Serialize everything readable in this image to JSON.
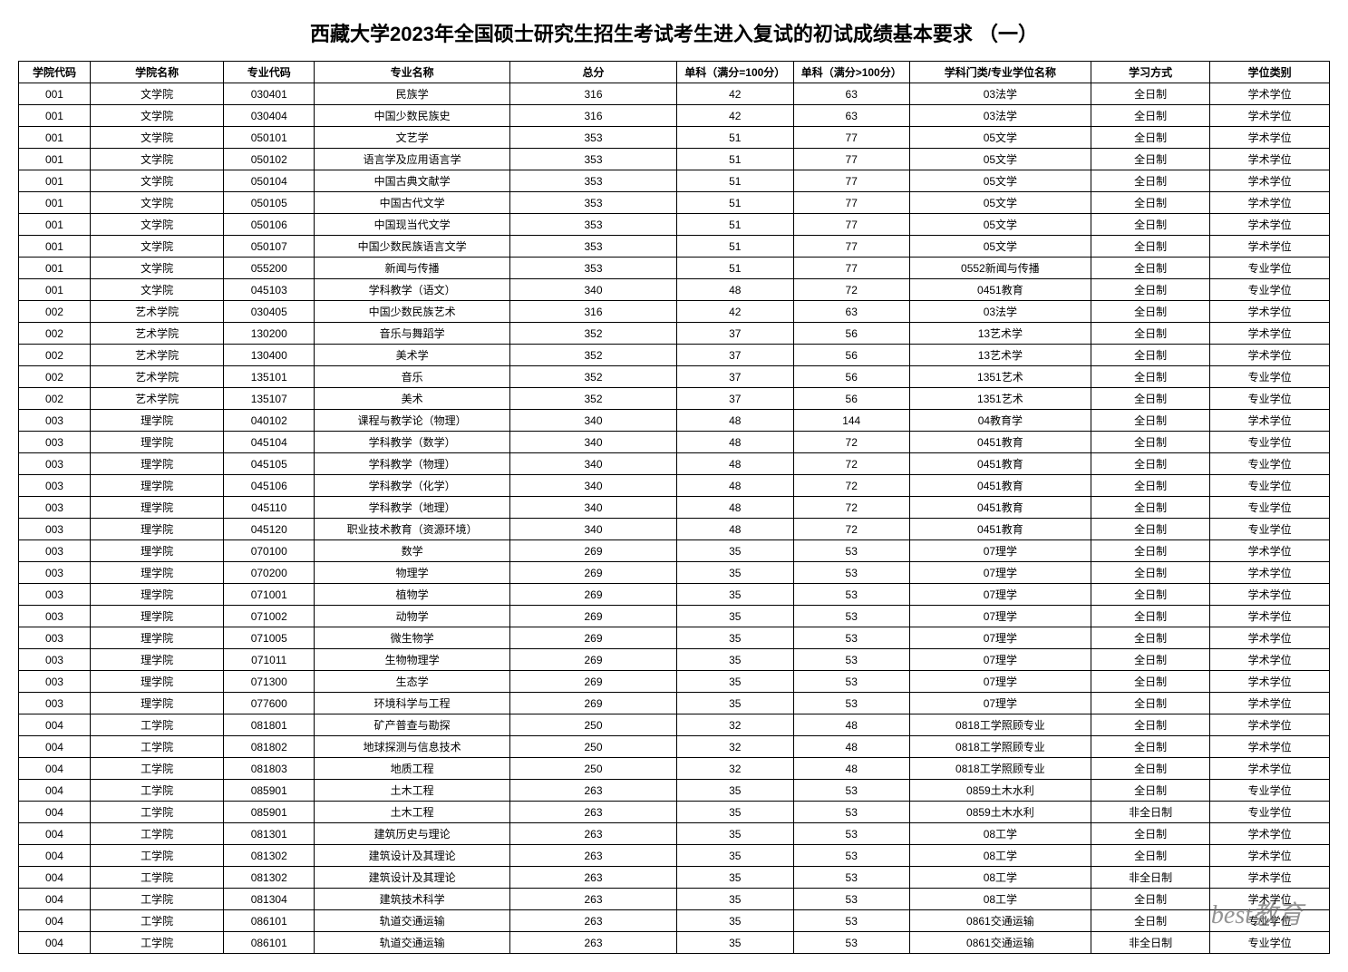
{
  "title": "西藏大学2023年全国硕士研究生招生考试考生进入复试的初试成绩基本要求 （一）",
  "watermark": "best教育",
  "columns": {
    "col1": "学院代码",
    "col2": "学院名称",
    "col3": "专业代码",
    "col4": "专业名称",
    "col5": "总分",
    "col6": "单科（满分=100分）",
    "col7": "单科（满分>100分）",
    "col8": "学科门类/专业学位名称",
    "col9": "学习方式",
    "col10": "学位类别"
  },
  "rows": [
    {
      "c1": "001",
      "c2": "文学院",
      "c3": "030401",
      "c4": "民族学",
      "c5": "316",
      "c6": "42",
      "c7": "63",
      "c8": "03法学",
      "c9": "全日制",
      "c10": "学术学位"
    },
    {
      "c1": "001",
      "c2": "文学院",
      "c3": "030404",
      "c4": "中国少数民族史",
      "c5": "316",
      "c6": "42",
      "c7": "63",
      "c8": "03法学",
      "c9": "全日制",
      "c10": "学术学位"
    },
    {
      "c1": "001",
      "c2": "文学院",
      "c3": "050101",
      "c4": "文艺学",
      "c5": "353",
      "c6": "51",
      "c7": "77",
      "c8": "05文学",
      "c9": "全日制",
      "c10": "学术学位"
    },
    {
      "c1": "001",
      "c2": "文学院",
      "c3": "050102",
      "c4": "语言学及应用语言学",
      "c5": "353",
      "c6": "51",
      "c7": "77",
      "c8": "05文学",
      "c9": "全日制",
      "c10": "学术学位"
    },
    {
      "c1": "001",
      "c2": "文学院",
      "c3": "050104",
      "c4": "中国古典文献学",
      "c5": "353",
      "c6": "51",
      "c7": "77",
      "c8": "05文学",
      "c9": "全日制",
      "c10": "学术学位"
    },
    {
      "c1": "001",
      "c2": "文学院",
      "c3": "050105",
      "c4": "中国古代文学",
      "c5": "353",
      "c6": "51",
      "c7": "77",
      "c8": "05文学",
      "c9": "全日制",
      "c10": "学术学位"
    },
    {
      "c1": "001",
      "c2": "文学院",
      "c3": "050106",
      "c4": "中国现当代文学",
      "c5": "353",
      "c6": "51",
      "c7": "77",
      "c8": "05文学",
      "c9": "全日制",
      "c10": "学术学位"
    },
    {
      "c1": "001",
      "c2": "文学院",
      "c3": "050107",
      "c4": "中国少数民族语言文学",
      "c5": "353",
      "c6": "51",
      "c7": "77",
      "c8": "05文学",
      "c9": "全日制",
      "c10": "学术学位"
    },
    {
      "c1": "001",
      "c2": "文学院",
      "c3": "055200",
      "c4": "新闻与传播",
      "c5": "353",
      "c6": "51",
      "c7": "77",
      "c8": "0552新闻与传播",
      "c9": "全日制",
      "c10": "专业学位"
    },
    {
      "c1": "001",
      "c2": "文学院",
      "c3": "045103",
      "c4": "学科教学（语文）",
      "c5": "340",
      "c6": "48",
      "c7": "72",
      "c8": "0451教育",
      "c9": "全日制",
      "c10": "专业学位"
    },
    {
      "c1": "002",
      "c2": "艺术学院",
      "c3": "030405",
      "c4": "中国少数民族艺术",
      "c5": "316",
      "c6": "42",
      "c7": "63",
      "c8": "03法学",
      "c9": "全日制",
      "c10": "学术学位"
    },
    {
      "c1": "002",
      "c2": "艺术学院",
      "c3": "130200",
      "c4": "音乐与舞蹈学",
      "c5": "352",
      "c6": "37",
      "c7": "56",
      "c8": "13艺术学",
      "c9": "全日制",
      "c10": "学术学位"
    },
    {
      "c1": "002",
      "c2": "艺术学院",
      "c3": "130400",
      "c4": "美术学",
      "c5": "352",
      "c6": "37",
      "c7": "56",
      "c8": "13艺术学",
      "c9": "全日制",
      "c10": "学术学位"
    },
    {
      "c1": "002",
      "c2": "艺术学院",
      "c3": "135101",
      "c4": "音乐",
      "c5": "352",
      "c6": "37",
      "c7": "56",
      "c8": "1351艺术",
      "c9": "全日制",
      "c10": "专业学位"
    },
    {
      "c1": "002",
      "c2": "艺术学院",
      "c3": "135107",
      "c4": "美术",
      "c5": "352",
      "c6": "37",
      "c7": "56",
      "c8": "1351艺术",
      "c9": "全日制",
      "c10": "专业学位"
    },
    {
      "c1": "003",
      "c2": "理学院",
      "c3": "040102",
      "c4": "课程与教学论（物理）",
      "c5": "340",
      "c6": "48",
      "c7": "144",
      "c8": "04教育学",
      "c9": "全日制",
      "c10": "学术学位"
    },
    {
      "c1": "003",
      "c2": "理学院",
      "c3": "045104",
      "c4": "学科教学（数学）",
      "c5": "340",
      "c6": "48",
      "c7": "72",
      "c8": "0451教育",
      "c9": "全日制",
      "c10": "专业学位"
    },
    {
      "c1": "003",
      "c2": "理学院",
      "c3": "045105",
      "c4": "学科教学（物理）",
      "c5": "340",
      "c6": "48",
      "c7": "72",
      "c8": "0451教育",
      "c9": "全日制",
      "c10": "专业学位"
    },
    {
      "c1": "003",
      "c2": "理学院",
      "c3": "045106",
      "c4": "学科教学（化学）",
      "c5": "340",
      "c6": "48",
      "c7": "72",
      "c8": "0451教育",
      "c9": "全日制",
      "c10": "专业学位"
    },
    {
      "c1": "003",
      "c2": "理学院",
      "c3": "045110",
      "c4": "学科教学（地理）",
      "c5": "340",
      "c6": "48",
      "c7": "72",
      "c8": "0451教育",
      "c9": "全日制",
      "c10": "专业学位"
    },
    {
      "c1": "003",
      "c2": "理学院",
      "c3": "045120",
      "c4": "职业技术教育（资源环境）",
      "c5": "340",
      "c6": "48",
      "c7": "72",
      "c8": "0451教育",
      "c9": "全日制",
      "c10": "专业学位"
    },
    {
      "c1": "003",
      "c2": "理学院",
      "c3": "070100",
      "c4": "数学",
      "c5": "269",
      "c6": "35",
      "c7": "53",
      "c8": "07理学",
      "c9": "全日制",
      "c10": "学术学位"
    },
    {
      "c1": "003",
      "c2": "理学院",
      "c3": "070200",
      "c4": "物理学",
      "c5": "269",
      "c6": "35",
      "c7": "53",
      "c8": "07理学",
      "c9": "全日制",
      "c10": "学术学位"
    },
    {
      "c1": "003",
      "c2": "理学院",
      "c3": "071001",
      "c4": "植物学",
      "c5": "269",
      "c6": "35",
      "c7": "53",
      "c8": "07理学",
      "c9": "全日制",
      "c10": "学术学位"
    },
    {
      "c1": "003",
      "c2": "理学院",
      "c3": "071002",
      "c4": "动物学",
      "c5": "269",
      "c6": "35",
      "c7": "53",
      "c8": "07理学",
      "c9": "全日制",
      "c10": "学术学位"
    },
    {
      "c1": "003",
      "c2": "理学院",
      "c3": "071005",
      "c4": "微生物学",
      "c5": "269",
      "c6": "35",
      "c7": "53",
      "c8": "07理学",
      "c9": "全日制",
      "c10": "学术学位"
    },
    {
      "c1": "003",
      "c2": "理学院",
      "c3": "071011",
      "c4": "生物物理学",
      "c5": "269",
      "c6": "35",
      "c7": "53",
      "c8": "07理学",
      "c9": "全日制",
      "c10": "学术学位"
    },
    {
      "c1": "003",
      "c2": "理学院",
      "c3": "071300",
      "c4": "生态学",
      "c5": "269",
      "c6": "35",
      "c7": "53",
      "c8": "07理学",
      "c9": "全日制",
      "c10": "学术学位"
    },
    {
      "c1": "003",
      "c2": "理学院",
      "c3": "077600",
      "c4": "环境科学与工程",
      "c5": "269",
      "c6": "35",
      "c7": "53",
      "c8": "07理学",
      "c9": "全日制",
      "c10": "学术学位"
    },
    {
      "c1": "004",
      "c2": "工学院",
      "c3": "081801",
      "c4": "矿产普查与勘探",
      "c5": "250",
      "c6": "32",
      "c7": "48",
      "c8": "0818工学照顾专业",
      "c9": "全日制",
      "c10": "学术学位"
    },
    {
      "c1": "004",
      "c2": "工学院",
      "c3": "081802",
      "c4": "地球探测与信息技术",
      "c5": "250",
      "c6": "32",
      "c7": "48",
      "c8": "0818工学照顾专业",
      "c9": "全日制",
      "c10": "学术学位"
    },
    {
      "c1": "004",
      "c2": "工学院",
      "c3": "081803",
      "c4": "地质工程",
      "c5": "250",
      "c6": "32",
      "c7": "48",
      "c8": "0818工学照顾专业",
      "c9": "全日制",
      "c10": "学术学位"
    },
    {
      "c1": "004",
      "c2": "工学院",
      "c3": "085901",
      "c4": "土木工程",
      "c5": "263",
      "c6": "35",
      "c7": "53",
      "c8": "0859土木水利",
      "c9": "全日制",
      "c10": "专业学位"
    },
    {
      "c1": "004",
      "c2": "工学院",
      "c3": "085901",
      "c4": "土木工程",
      "c5": "263",
      "c6": "35",
      "c7": "53",
      "c8": "0859土木水利",
      "c9": "非全日制",
      "c10": "专业学位"
    },
    {
      "c1": "004",
      "c2": "工学院",
      "c3": "081301",
      "c4": "建筑历史与理论",
      "c5": "263",
      "c6": "35",
      "c7": "53",
      "c8": "08工学",
      "c9": "全日制",
      "c10": "学术学位"
    },
    {
      "c1": "004",
      "c2": "工学院",
      "c3": "081302",
      "c4": "建筑设计及其理论",
      "c5": "263",
      "c6": "35",
      "c7": "53",
      "c8": "08工学",
      "c9": "全日制",
      "c10": "学术学位"
    },
    {
      "c1": "004",
      "c2": "工学院",
      "c3": "081302",
      "c4": "建筑设计及其理论",
      "c5": "263",
      "c6": "35",
      "c7": "53",
      "c8": "08工学",
      "c9": "非全日制",
      "c10": "学术学位"
    },
    {
      "c1": "004",
      "c2": "工学院",
      "c3": "081304",
      "c4": "建筑技术科学",
      "c5": "263",
      "c6": "35",
      "c7": "53",
      "c8": "08工学",
      "c9": "全日制",
      "c10": "学术学位"
    },
    {
      "c1": "004",
      "c2": "工学院",
      "c3": "086101",
      "c4": "轨道交通运输",
      "c5": "263",
      "c6": "35",
      "c7": "53",
      "c8": "0861交通运输",
      "c9": "全日制",
      "c10": "专业学位"
    },
    {
      "c1": "004",
      "c2": "工学院",
      "c3": "086101",
      "c4": "轨道交通运输",
      "c5": "263",
      "c6": "35",
      "c7": "53",
      "c8": "0861交通运输",
      "c9": "非全日制",
      "c10": "专业学位"
    }
  ]
}
